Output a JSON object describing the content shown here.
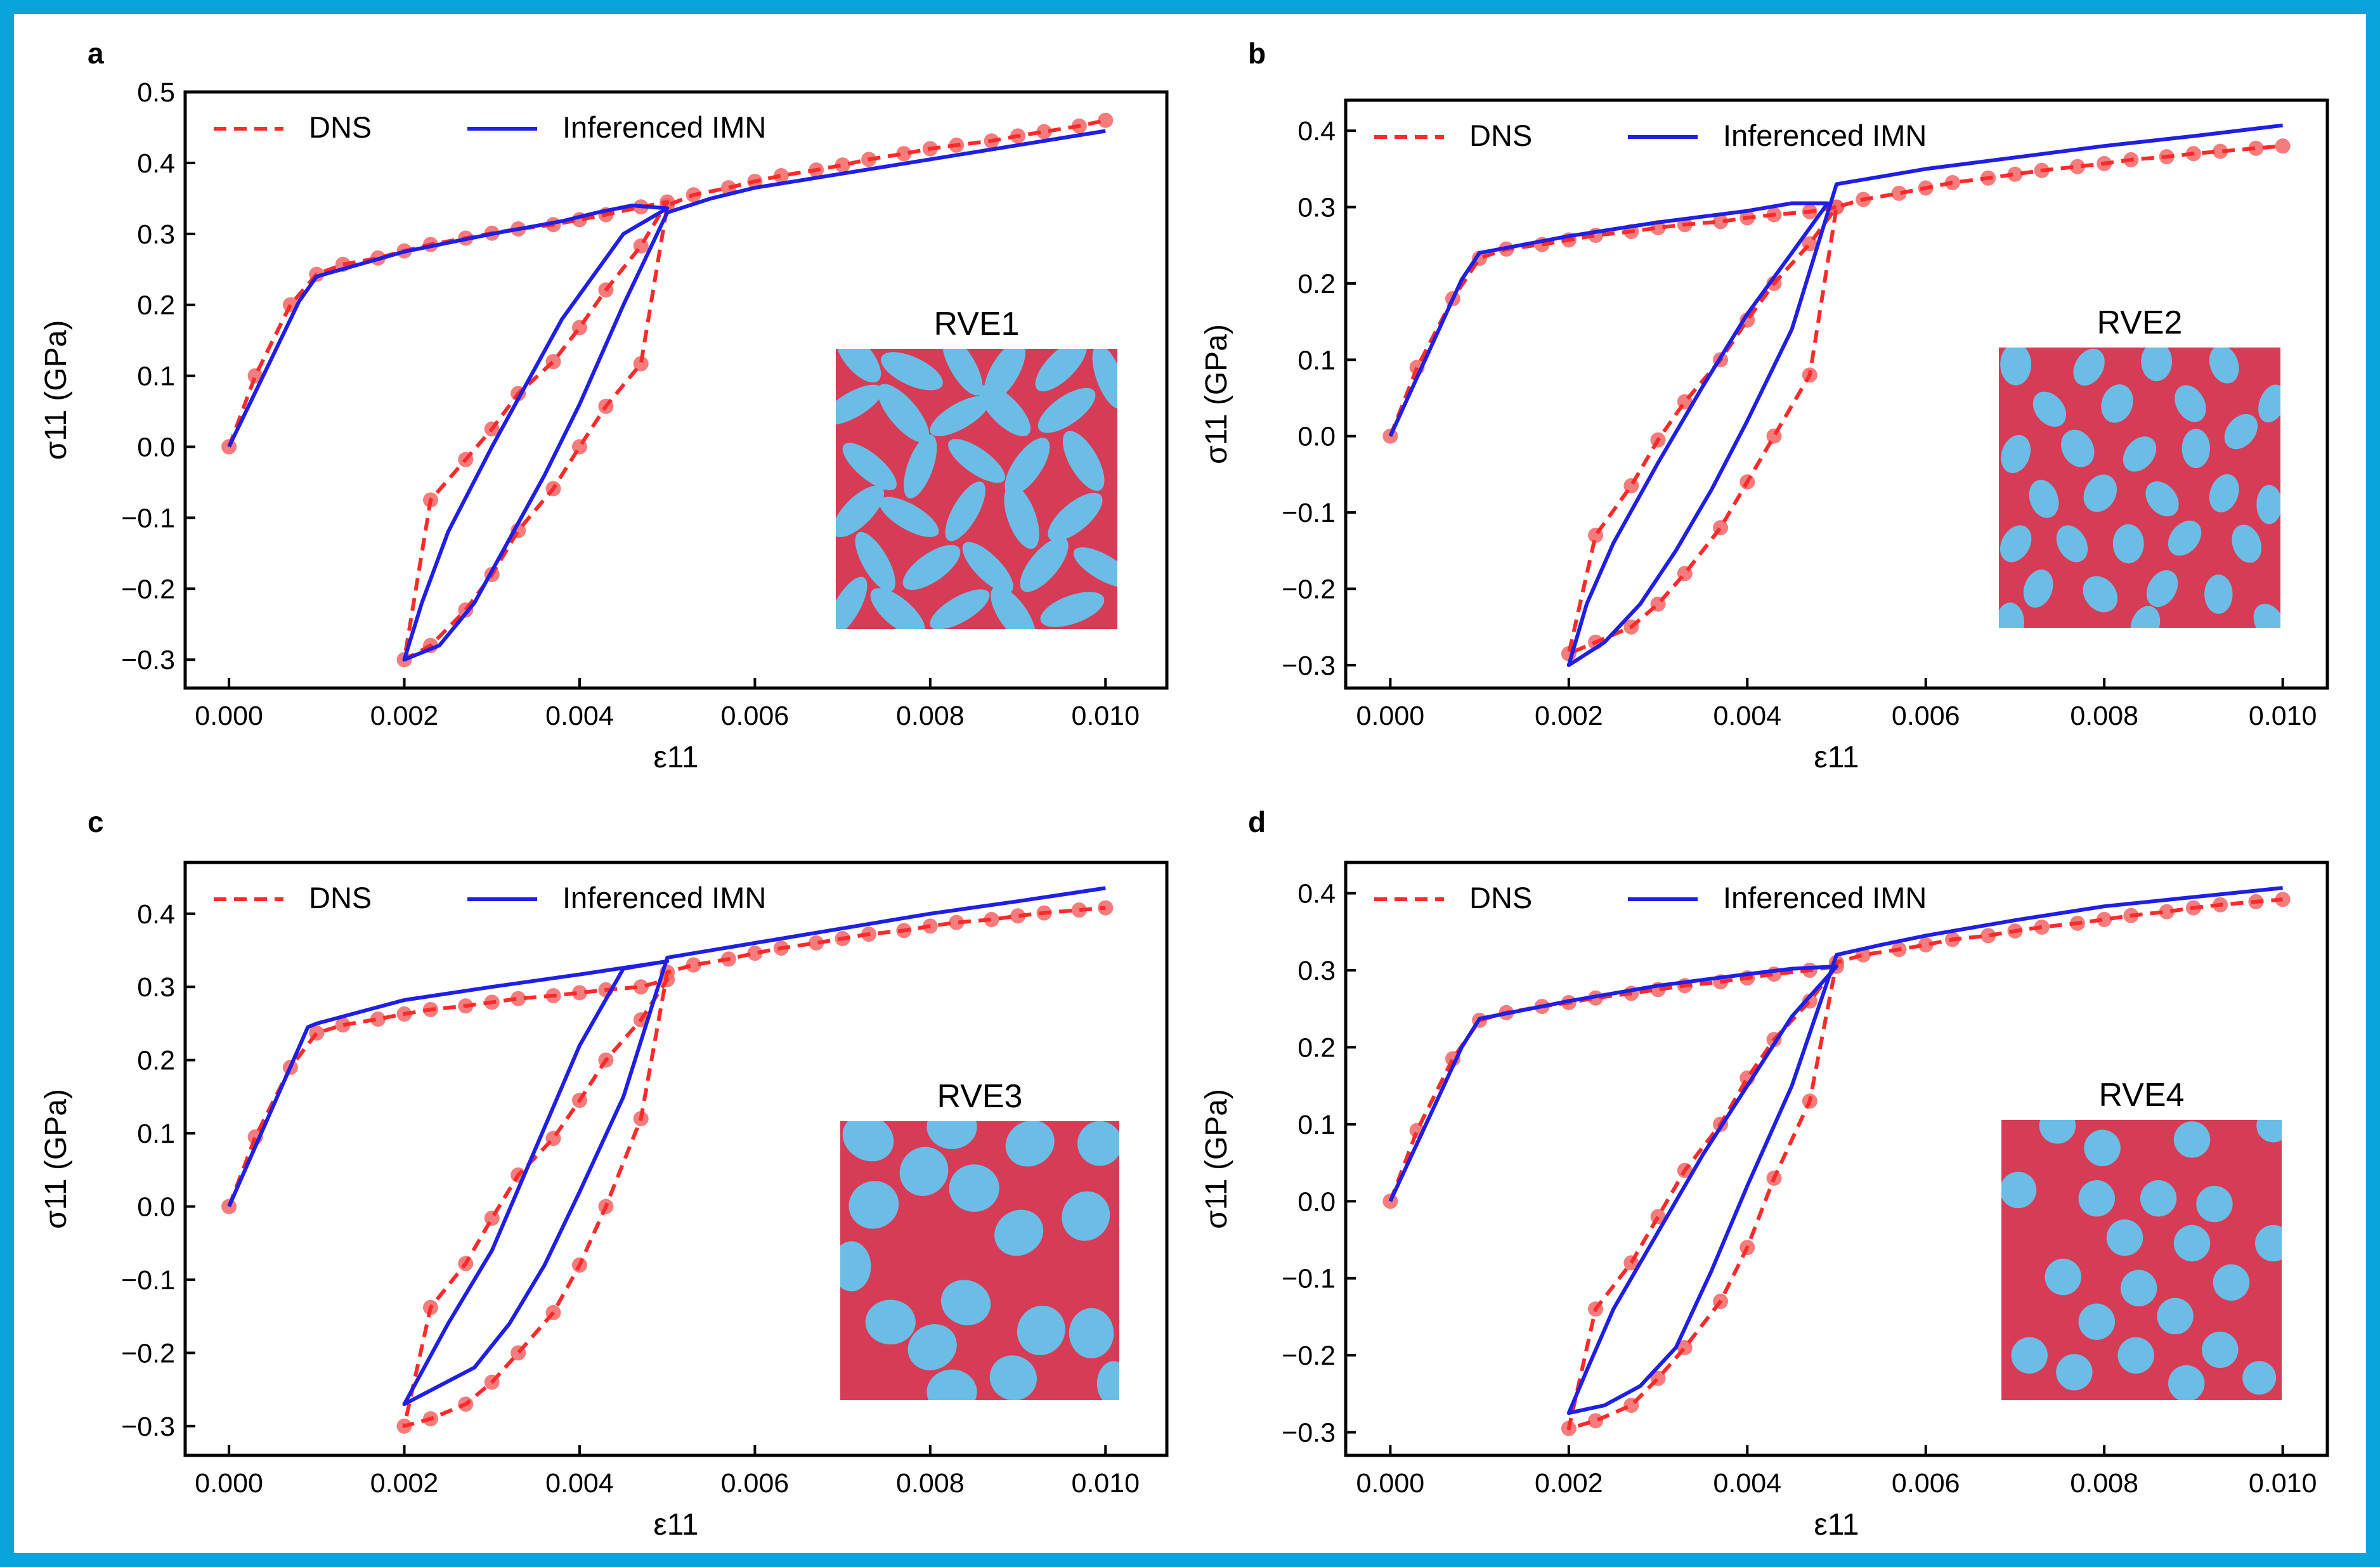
{
  "figure": {
    "frame_color": "#0aa4dd",
    "dns_color": "#ff2a2a",
    "dns_marker_color": "#f26565",
    "imn_color": "#1f1fe6",
    "matrix_color": "#d63c55",
    "inclusion_color": "#6bbde6"
  },
  "chart_data": [
    {
      "panel_label": "a",
      "type": "line",
      "xlabel": "ε11",
      "ylabel": "σ11 (GPa)",
      "xlim": [
        -0.0005,
        0.0107
      ],
      "ylim": [
        -0.34,
        0.5
      ],
      "xticks": [
        0.0,
        0.002,
        0.004,
        0.006,
        0.008,
        0.01
      ],
      "xtick_labels": [
        "0.000",
        "0.002",
        "0.004",
        "0.006",
        "0.008",
        "0.010"
      ],
      "yticks": [
        -0.3,
        -0.2,
        -0.1,
        0.0,
        0.1,
        0.2,
        0.3,
        0.4,
        0.5
      ],
      "ytick_labels": [
        "−0.3",
        "−0.2",
        "−0.1",
        "0.0",
        "0.1",
        "0.2",
        "0.3",
        "0.4",
        "0.5"
      ],
      "legend": [
        "DNS",
        "Inferenced IMN"
      ],
      "inset_label": "RVE1",
      "inset_pattern": "elongated",
      "series": [
        {
          "name": "DNS",
          "style": "dashed",
          "markers": true,
          "x": [
            0,
            0.0003,
            0.0007,
            0.001,
            0.0013,
            0.0017,
            0.002,
            0.0023,
            0.0027,
            0.003,
            0.0033,
            0.0037,
            0.004,
            0.0043,
            0.0047,
            0.005,
            0.0047,
            0.0043,
            0.004,
            0.0037,
            0.0033,
            0.003,
            0.0027,
            0.0023,
            0.002,
            0.0023,
            0.0027,
            0.003,
            0.0033,
            0.0037,
            0.004,
            0.0043,
            0.0047,
            0.005,
            0.0053,
            0.0057,
            0.006,
            0.0063,
            0.0067,
            0.007,
            0.0073,
            0.0077,
            0.008,
            0.0083,
            0.0087,
            0.009,
            0.0093,
            0.0097,
            0.01
          ],
          "y": [
            0,
            0.1,
            0.2,
            0.243,
            0.257,
            0.266,
            0.276,
            0.285,
            0.294,
            0.301,
            0.307,
            0.313,
            0.32,
            0.327,
            0.338,
            0.345,
            0.283,
            0.221,
            0.168,
            0.12,
            0.075,
            0.025,
            -0.018,
            -0.075,
            -0.3,
            -0.28,
            -0.23,
            -0.18,
            -0.118,
            -0.059,
            0.0,
            0.057,
            0.117,
            0.34,
            0.355,
            0.365,
            0.374,
            0.382,
            0.39,
            0.397,
            0.405,
            0.413,
            0.42,
            0.425,
            0.431,
            0.438,
            0.444,
            0.452,
            0.46
          ]
        },
        {
          "name": "Inferenced IMN",
          "style": "solid",
          "markers": false,
          "x": [
            0,
            0.0008,
            0.001,
            0.002,
            0.003,
            0.0038,
            0.0042,
            0.0046,
            0.005,
            0.0045,
            0.0038,
            0.003,
            0.0025,
            0.0022,
            0.002,
            0.0024,
            0.0028,
            0.0032,
            0.0036,
            0.004,
            0.0045,
            0.005,
            0.0055,
            0.006,
            0.007,
            0.008,
            0.009,
            0.01
          ],
          "y": [
            0,
            0.205,
            0.24,
            0.275,
            0.3,
            0.318,
            0.33,
            0.34,
            0.336,
            0.3,
            0.18,
            0.0,
            -0.12,
            -0.22,
            -0.3,
            -0.28,
            -0.22,
            -0.13,
            -0.04,
            0.06,
            0.2,
            0.33,
            0.35,
            0.365,
            0.385,
            0.405,
            0.425,
            0.445
          ]
        }
      ]
    },
    {
      "panel_label": "b",
      "type": "line",
      "xlabel": "ε11",
      "ylabel": "σ11 (GPa)",
      "xlim": [
        -0.0005,
        0.0105
      ],
      "ylim": [
        -0.33,
        0.44
      ],
      "xticks": [
        0.0,
        0.002,
        0.004,
        0.006,
        0.008,
        0.01
      ],
      "xtick_labels": [
        "0.000",
        "0.002",
        "0.004",
        "0.006",
        "0.008",
        "0.010"
      ],
      "yticks": [
        -0.3,
        -0.2,
        -0.1,
        0.0,
        0.1,
        0.2,
        0.3,
        0.4
      ],
      "ytick_labels": [
        "−0.3",
        "−0.2",
        "−0.1",
        "0.0",
        "0.1",
        "0.2",
        "0.3",
        "0.4"
      ],
      "legend": [
        "DNS",
        "Inferenced IMN"
      ],
      "inset_label": "RVE2",
      "inset_pattern": "small",
      "series": [
        {
          "name": "DNS",
          "style": "dashed",
          "markers": true,
          "x": [
            0,
            0.0003,
            0.0007,
            0.001,
            0.0013,
            0.0017,
            0.002,
            0.0023,
            0.0027,
            0.003,
            0.0033,
            0.0037,
            0.004,
            0.0043,
            0.0047,
            0.005,
            0.0047,
            0.0043,
            0.004,
            0.0037,
            0.0033,
            0.003,
            0.0027,
            0.0023,
            0.002,
            0.0023,
            0.0027,
            0.003,
            0.0033,
            0.0037,
            0.004,
            0.0043,
            0.0047,
            0.005,
            0.0053,
            0.0057,
            0.006,
            0.0063,
            0.0067,
            0.007,
            0.0073,
            0.0077,
            0.008,
            0.0083,
            0.0087,
            0.009,
            0.0093,
            0.0097,
            0.01
          ],
          "y": [
            0,
            0.09,
            0.18,
            0.233,
            0.245,
            0.251,
            0.257,
            0.263,
            0.268,
            0.273,
            0.277,
            0.281,
            0.286,
            0.29,
            0.294,
            0.3,
            0.252,
            0.2,
            0.152,
            0.1,
            0.045,
            -0.005,
            -0.065,
            -0.13,
            -0.285,
            -0.27,
            -0.25,
            -0.22,
            -0.18,
            -0.12,
            -0.06,
            0.0,
            0.08,
            0.3,
            0.31,
            0.318,
            0.325,
            0.332,
            0.338,
            0.343,
            0.348,
            0.353,
            0.357,
            0.362,
            0.366,
            0.37,
            0.373,
            0.377,
            0.38
          ]
        },
        {
          "name": "Inferenced IMN",
          "style": "solid",
          "markers": false,
          "x": [
            0,
            0.0008,
            0.001,
            0.002,
            0.003,
            0.004,
            0.0045,
            0.0049,
            0.0045,
            0.004,
            0.0035,
            0.003,
            0.0025,
            0.0022,
            0.002,
            0.0024,
            0.0028,
            0.0032,
            0.0036,
            0.004,
            0.0045,
            0.005,
            0.0055,
            0.006,
            0.007,
            0.008,
            0.009,
            0.01
          ],
          "y": [
            0,
            0.205,
            0.24,
            0.262,
            0.28,
            0.295,
            0.305,
            0.305,
            0.24,
            0.16,
            0.065,
            -0.035,
            -0.14,
            -0.22,
            -0.3,
            -0.27,
            -0.22,
            -0.15,
            -0.07,
            0.02,
            0.14,
            0.33,
            0.34,
            0.35,
            0.365,
            0.38,
            0.393,
            0.407
          ]
        }
      ]
    },
    {
      "panel_label": "c",
      "type": "line",
      "xlabel": "ε11",
      "ylabel": "σ11 (GPa)",
      "xlim": [
        -0.0005,
        0.0107
      ],
      "ylim": [
        -0.34,
        0.47
      ],
      "xticks": [
        0.0,
        0.002,
        0.004,
        0.006,
        0.008,
        0.01
      ],
      "xtick_labels": [
        "0.000",
        "0.002",
        "0.004",
        "0.006",
        "0.008",
        "0.010"
      ],
      "yticks": [
        -0.3,
        -0.2,
        -0.1,
        0.0,
        0.1,
        0.2,
        0.3,
        0.4
      ],
      "ytick_labels": [
        "−0.3",
        "−0.2",
        "−0.1",
        "0.0",
        "0.1",
        "0.2",
        "0.3",
        "0.4"
      ],
      "legend": [
        "DNS",
        "Inferenced IMN"
      ],
      "inset_label": "RVE3",
      "inset_pattern": "large",
      "series": [
        {
          "name": "DNS",
          "style": "dashed",
          "markers": true,
          "x": [
            0,
            0.0003,
            0.0007,
            0.001,
            0.0013,
            0.0017,
            0.002,
            0.0023,
            0.0027,
            0.003,
            0.0033,
            0.0037,
            0.004,
            0.0043,
            0.0047,
            0.005,
            0.0047,
            0.0043,
            0.004,
            0.0037,
            0.0033,
            0.003,
            0.0027,
            0.0023,
            0.002,
            0.0023,
            0.0027,
            0.003,
            0.0033,
            0.0037,
            0.004,
            0.0043,
            0.0047,
            0.005,
            0.0053,
            0.0057,
            0.006,
            0.0063,
            0.0067,
            0.007,
            0.0073,
            0.0077,
            0.008,
            0.0083,
            0.0087,
            0.009,
            0.0093,
            0.0097,
            0.01
          ],
          "y": [
            0,
            0.095,
            0.19,
            0.237,
            0.248,
            0.256,
            0.263,
            0.269,
            0.274,
            0.279,
            0.284,
            0.288,
            0.292,
            0.296,
            0.3,
            0.31,
            0.255,
            0.2,
            0.145,
            0.093,
            0.043,
            -0.016,
            -0.078,
            -0.138,
            -0.3,
            -0.29,
            -0.27,
            -0.24,
            -0.2,
            -0.145,
            -0.08,
            0.0,
            0.12,
            0.32,
            0.33,
            0.338,
            0.346,
            0.353,
            0.36,
            0.366,
            0.372,
            0.377,
            0.383,
            0.388,
            0.392,
            0.397,
            0.401,
            0.405,
            0.408
          ]
        },
        {
          "name": "Inferenced IMN",
          "style": "solid",
          "markers": false,
          "x": [
            0,
            0.0009,
            0.001,
            0.002,
            0.003,
            0.004,
            0.005,
            0.0045,
            0.004,
            0.0035,
            0.003,
            0.0025,
            0.002,
            0.0028,
            0.0032,
            0.0036,
            0.004,
            0.0045,
            0.005,
            0.006,
            0.007,
            0.008,
            0.009,
            0.01
          ],
          "y": [
            0,
            0.245,
            0.25,
            0.282,
            0.3,
            0.317,
            0.335,
            0.325,
            0.22,
            0.08,
            -0.06,
            -0.16,
            -0.27,
            -0.22,
            -0.16,
            -0.08,
            0.02,
            0.15,
            0.34,
            0.36,
            0.38,
            0.4,
            0.417,
            0.435
          ]
        }
      ]
    },
    {
      "panel_label": "d",
      "type": "line",
      "xlabel": "ε11",
      "ylabel": "σ11 (GPa)",
      "xlim": [
        -0.0005,
        0.0105
      ],
      "ylim": [
        -0.33,
        0.44
      ],
      "xticks": [
        0.0,
        0.002,
        0.004,
        0.006,
        0.008,
        0.01
      ],
      "xtick_labels": [
        "0.000",
        "0.002",
        "0.004",
        "0.006",
        "0.008",
        "0.010"
      ],
      "yticks": [
        -0.3,
        -0.2,
        -0.1,
        0.0,
        0.1,
        0.2,
        0.3,
        0.4
      ],
      "ytick_labels": [
        "−0.3",
        "−0.2",
        "−0.1",
        "0.0",
        "0.1",
        "0.2",
        "0.3",
        "0.4"
      ],
      "legend": [
        "DNS",
        "Inferenced IMN"
      ],
      "inset_label": "RVE4",
      "inset_pattern": "circles",
      "series": [
        {
          "name": "DNS",
          "style": "dashed",
          "markers": true,
          "x": [
            0,
            0.0003,
            0.0007,
            0.001,
            0.0013,
            0.0017,
            0.002,
            0.0023,
            0.0027,
            0.003,
            0.0033,
            0.0037,
            0.004,
            0.0043,
            0.0047,
            0.005,
            0.0047,
            0.0043,
            0.004,
            0.0037,
            0.0033,
            0.003,
            0.0027,
            0.0023,
            0.002,
            0.0023,
            0.0027,
            0.003,
            0.0033,
            0.0037,
            0.004,
            0.0043,
            0.0047,
            0.005,
            0.0053,
            0.0057,
            0.006,
            0.0063,
            0.0067,
            0.007,
            0.0073,
            0.0077,
            0.008,
            0.0083,
            0.0087,
            0.009,
            0.0093,
            0.0097,
            0.01
          ],
          "y": [
            0,
            0.092,
            0.185,
            0.235,
            0.245,
            0.253,
            0.258,
            0.264,
            0.27,
            0.275,
            0.28,
            0.285,
            0.29,
            0.295,
            0.3,
            0.305,
            0.26,
            0.21,
            0.16,
            0.1,
            0.04,
            -0.02,
            -0.08,
            -0.14,
            -0.295,
            -0.285,
            -0.265,
            -0.23,
            -0.19,
            -0.13,
            -0.06,
            0.03,
            0.13,
            0.31,
            0.32,
            0.327,
            0.333,
            0.34,
            0.345,
            0.351,
            0.356,
            0.361,
            0.366,
            0.371,
            0.376,
            0.381,
            0.385,
            0.389,
            0.392
          ]
        },
        {
          "name": "Inferenced IMN",
          "style": "solid",
          "markers": false,
          "x": [
            0,
            0.0008,
            0.001,
            0.002,
            0.003,
            0.004,
            0.0045,
            0.005,
            0.0045,
            0.004,
            0.0035,
            0.003,
            0.0025,
            0.0022,
            0.002,
            0.0024,
            0.0028,
            0.0032,
            0.0036,
            0.004,
            0.0045,
            0.005,
            0.0055,
            0.006,
            0.007,
            0.008,
            0.009,
            0.01
          ],
          "y": [
            0,
            0.2,
            0.237,
            0.26,
            0.28,
            0.295,
            0.302,
            0.305,
            0.24,
            0.15,
            0.06,
            -0.04,
            -0.14,
            -0.22,
            -0.275,
            -0.265,
            -0.24,
            -0.19,
            -0.09,
            0.02,
            0.15,
            0.32,
            0.333,
            0.345,
            0.365,
            0.383,
            0.395,
            0.407
          ]
        }
      ]
    }
  ]
}
